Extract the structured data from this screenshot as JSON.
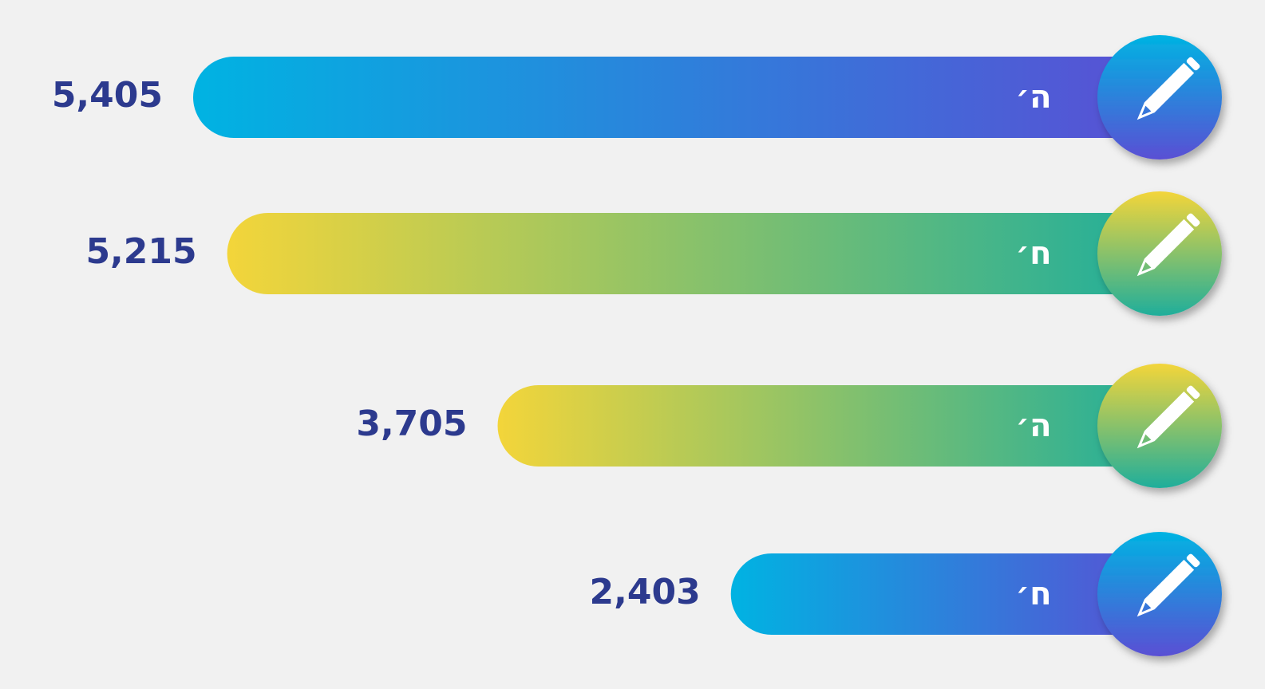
{
  "chart_data": {
    "type": "bar",
    "categories": [
      "ה׳",
      "ח׳",
      "ה׳",
      "ח׳"
    ],
    "values": [
      5405,
      5215,
      3705,
      2403
    ],
    "value_labels": [
      "5,405",
      "5,215",
      "3,705",
      "2,403"
    ],
    "colors": [
      [
        "#00b3e2",
        "#5a4fd4"
      ],
      [
        "#f3d53a",
        "#1fae9b"
      ],
      [
        "#f3d53a",
        "#1fae9b"
      ],
      [
        "#00b3e2",
        "#5a4fd4"
      ]
    ]
  }
}
